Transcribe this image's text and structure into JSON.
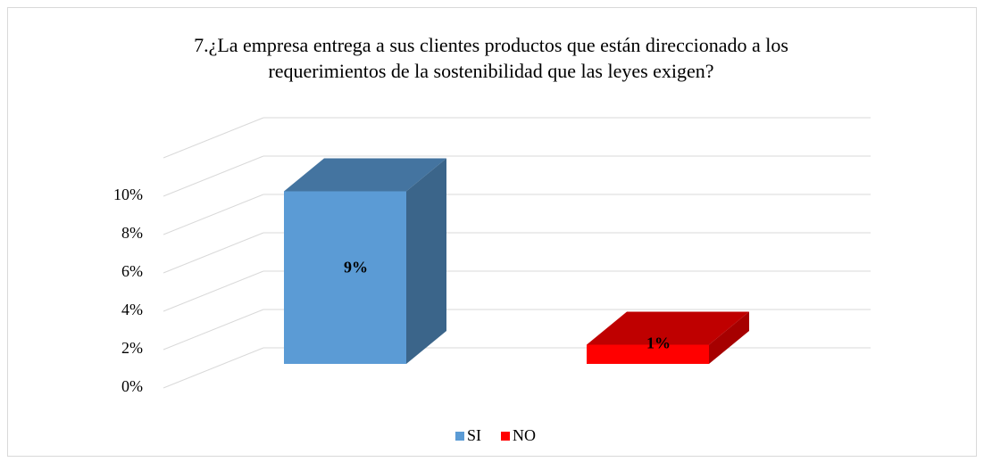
{
  "chart_data": {
    "type": "bar3d",
    "title": "7.¿La empresa entrega a sus clientes productos que están direccionado a los requerimientos de la sostenibilidad que las leyes exigen?",
    "categories": [
      "SI",
      "NO"
    ],
    "series": [
      {
        "name": "SI",
        "color": "#5b9bd5"
      },
      {
        "name": "NO",
        "color": "#ff0000"
      }
    ],
    "values": [
      9,
      1
    ],
    "value_labels": [
      "9%",
      "1%"
    ],
    "ylim": [
      0,
      12
    ],
    "yticks": [
      {
        "value": 0,
        "label": "0%"
      },
      {
        "value": 2,
        "label": "2%"
      },
      {
        "value": 4,
        "label": "4%"
      },
      {
        "value": 6,
        "label": "6%"
      },
      {
        "value": 8,
        "label": "8%"
      },
      {
        "value": 10,
        "label": "10%"
      }
    ],
    "grid": true,
    "legend": "bottom"
  }
}
